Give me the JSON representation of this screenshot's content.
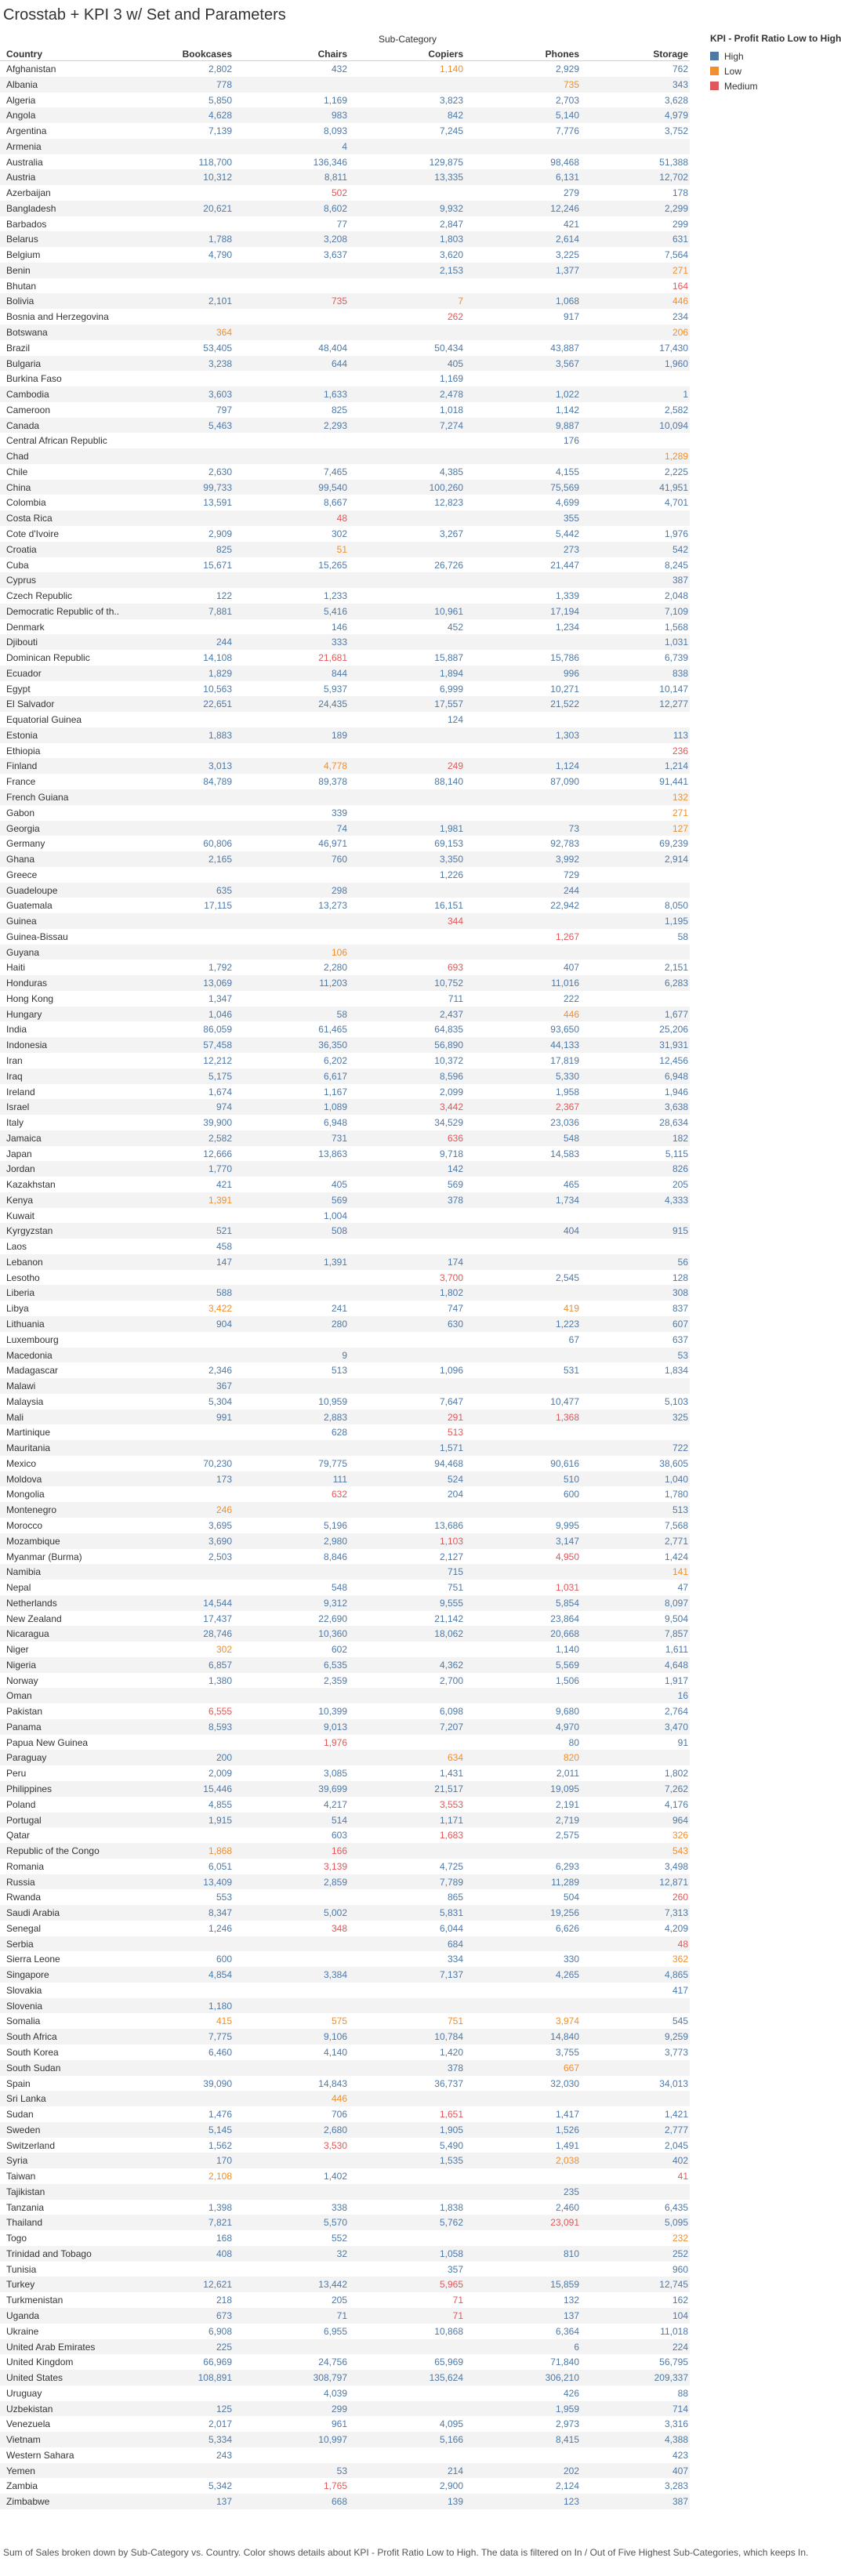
{
  "title": "Crosstab + KPI 3 w/ Set and Parameters",
  "sub_category_label": "Sub-Category",
  "headers": [
    "Country",
    "Bookcases",
    "Chairs",
    "Copiers",
    "Phones",
    "Storage"
  ],
  "legend": {
    "title": "KPI - Profit Ratio Low to High",
    "items": [
      {
        "label": "High",
        "color": "#4e79a7"
      },
      {
        "label": "Low",
        "color": "#f28e2b"
      },
      {
        "label": "Medium",
        "color": "#e15759"
      }
    ]
  },
  "colors": {
    "H": "#4e79a7",
    "L": "#f28e2b",
    "M": "#e15759"
  },
  "rows": [
    [
      "Afghanistan",
      "2,802|H",
      "432|H",
      "1,140|L",
      "2,929|H",
      "762|H"
    ],
    [
      "Albania",
      "778|H",
      "",
      "",
      "735|L",
      "343|H"
    ],
    [
      "Algeria",
      "5,850|H",
      "1,169|H",
      "3,823|H",
      "2,703|H",
      "3,628|H"
    ],
    [
      "Angola",
      "4,628|H",
      "983|H",
      "842|H",
      "5,140|H",
      "4,979|H"
    ],
    [
      "Argentina",
      "7,139|H",
      "8,093|H",
      "7,245|H",
      "7,776|H",
      "3,752|H"
    ],
    [
      "Armenia",
      "",
      "4|H",
      "",
      "",
      ""
    ],
    [
      "Australia",
      "118,700|H",
      "136,346|H",
      "129,875|H",
      "98,468|H",
      "51,388|H"
    ],
    [
      "Austria",
      "10,312|H",
      "8,811|H",
      "13,335|H",
      "6,131|H",
      "12,702|H"
    ],
    [
      "Azerbaijan",
      "",
      "502|M",
      "",
      "279|H",
      "178|H"
    ],
    [
      "Bangladesh",
      "20,621|H",
      "8,602|H",
      "9,932|H",
      "12,246|H",
      "2,299|H"
    ],
    [
      "Barbados",
      "",
      "77|H",
      "2,847|H",
      "421|H",
      "299|H"
    ],
    [
      "Belarus",
      "1,788|H",
      "3,208|H",
      "1,803|H",
      "2,614|H",
      "631|H"
    ],
    [
      "Belgium",
      "4,790|H",
      "3,637|H",
      "3,620|H",
      "3,225|H",
      "7,564|H"
    ],
    [
      "Benin",
      "",
      "",
      "2,153|H",
      "1,377|H",
      "271|L"
    ],
    [
      "Bhutan",
      "",
      "",
      "",
      "",
      "164|M"
    ],
    [
      "Bolivia",
      "2,101|H",
      "735|M",
      "7|L",
      "1,068|H",
      "446|L"
    ],
    [
      "Bosnia and Herzegovina",
      "",
      "",
      "262|M",
      "917|H",
      "234|H"
    ],
    [
      "Botswana",
      "364|L",
      "",
      "",
      "",
      "206|L"
    ],
    [
      "Brazil",
      "53,405|H",
      "48,404|H",
      "50,434|H",
      "43,887|H",
      "17,430|H"
    ],
    [
      "Bulgaria",
      "3,238|H",
      "644|H",
      "405|H",
      "3,567|H",
      "1,960|H"
    ],
    [
      "Burkina Faso",
      "",
      "",
      "1,169|H",
      "",
      ""
    ],
    [
      "Cambodia",
      "3,603|H",
      "1,633|H",
      "2,478|H",
      "1,022|H",
      "1|H"
    ],
    [
      "Cameroon",
      "797|H",
      "825|H",
      "1,018|H",
      "1,142|H",
      "2,582|H"
    ],
    [
      "Canada",
      "5,463|H",
      "2,293|H",
      "7,274|H",
      "9,887|H",
      "10,094|H"
    ],
    [
      "Central African Republic",
      "",
      "",
      "",
      "176|H",
      ""
    ],
    [
      "Chad",
      "",
      "",
      "",
      "",
      "1,289|L"
    ],
    [
      "Chile",
      "2,630|H",
      "7,465|H",
      "4,385|H",
      "4,155|H",
      "2,225|H"
    ],
    [
      "China",
      "99,733|H",
      "99,540|H",
      "100,260|H",
      "75,569|H",
      "41,951|H"
    ],
    [
      "Colombia",
      "13,591|H",
      "8,667|H",
      "12,823|H",
      "4,699|H",
      "4,701|H"
    ],
    [
      "Costa Rica",
      "",
      "48|M",
      "",
      "355|H",
      ""
    ],
    [
      "Cote d'Ivoire",
      "2,909|H",
      "302|H",
      "3,267|H",
      "5,442|H",
      "1,976|H"
    ],
    [
      "Croatia",
      "825|H",
      "51|L",
      "",
      "273|H",
      "542|H"
    ],
    [
      "Cuba",
      "15,671|H",
      "15,265|H",
      "26,726|H",
      "21,447|H",
      "8,245|H"
    ],
    [
      "Cyprus",
      "",
      "",
      "",
      "",
      "387|H"
    ],
    [
      "Czech Republic",
      "122|H",
      "1,233|H",
      "",
      "1,339|H",
      "2,048|H"
    ],
    [
      "Democratic Republic of th..",
      "7,881|H",
      "5,416|H",
      "10,961|H",
      "17,194|H",
      "7,109|H"
    ],
    [
      "Denmark",
      "",
      "146|H",
      "452|H",
      "1,234|H",
      "1,568|H"
    ],
    [
      "Djibouti",
      "244|H",
      "333|H",
      "",
      "",
      "1,031|H"
    ],
    [
      "Dominican Republic",
      "14,108|H",
      "21,681|M",
      "15,887|H",
      "15,786|H",
      "6,739|H"
    ],
    [
      "Ecuador",
      "1,829|H",
      "844|H",
      "1,894|H",
      "996|H",
      "838|H"
    ],
    [
      "Egypt",
      "10,563|H",
      "5,937|H",
      "6,999|H",
      "10,271|H",
      "10,147|H"
    ],
    [
      "El Salvador",
      "22,651|H",
      "24,435|H",
      "17,557|H",
      "21,522|H",
      "12,277|H"
    ],
    [
      "Equatorial Guinea",
      "",
      "",
      "124|H",
      "",
      ""
    ],
    [
      "Estonia",
      "1,883|H",
      "189|H",
      "",
      "1,303|H",
      "113|H"
    ],
    [
      "Ethiopia",
      "",
      "",
      "",
      "",
      "236|M"
    ],
    [
      "Finland",
      "3,013|H",
      "4,778|L",
      "249|M",
      "1,124|H",
      "1,214|H"
    ],
    [
      "France",
      "84,789|H",
      "89,378|H",
      "88,140|H",
      "87,090|H",
      "91,441|H"
    ],
    [
      "French Guiana",
      "",
      "",
      "",
      "",
      "132|L"
    ],
    [
      "Gabon",
      "",
      "339|H",
      "",
      "",
      "271|L"
    ],
    [
      "Georgia",
      "",
      "74|H",
      "1,981|H",
      "73|H",
      "127|L"
    ],
    [
      "Germany",
      "60,806|H",
      "46,971|H",
      "69,153|H",
      "92,783|H",
      "69,239|H"
    ],
    [
      "Ghana",
      "2,165|H",
      "760|H",
      "3,350|H",
      "3,992|H",
      "2,914|H"
    ],
    [
      "Greece",
      "",
      "",
      "1,226|H",
      "729|H",
      ""
    ],
    [
      "Guadeloupe",
      "635|H",
      "298|H",
      "",
      "244|H",
      ""
    ],
    [
      "Guatemala",
      "17,115|H",
      "13,273|H",
      "16,151|H",
      "22,942|H",
      "8,050|H"
    ],
    [
      "Guinea",
      "",
      "",
      "344|M",
      "",
      "1,195|H"
    ],
    [
      "Guinea-Bissau",
      "",
      "",
      "",
      "1,267|M",
      "58|H"
    ],
    [
      "Guyana",
      "",
      "106|L",
      "",
      "",
      ""
    ],
    [
      "Haiti",
      "1,792|H",
      "2,280|H",
      "693|M",
      "407|H",
      "2,151|H"
    ],
    [
      "Honduras",
      "13,069|H",
      "11,203|H",
      "10,752|H",
      "11,016|H",
      "6,283|H"
    ],
    [
      "Hong Kong",
      "1,347|H",
      "",
      "711|H",
      "222|H",
      ""
    ],
    [
      "Hungary",
      "1,046|H",
      "58|H",
      "2,437|H",
      "446|L",
      "1,677|H"
    ],
    [
      "India",
      "86,059|H",
      "61,465|H",
      "64,835|H",
      "93,650|H",
      "25,206|H"
    ],
    [
      "Indonesia",
      "57,458|H",
      "36,350|H",
      "56,890|H",
      "44,133|H",
      "31,931|H"
    ],
    [
      "Iran",
      "12,212|H",
      "6,202|H",
      "10,372|H",
      "17,819|H",
      "12,456|H"
    ],
    [
      "Iraq",
      "5,175|H",
      "6,617|H",
      "8,596|H",
      "5,330|H",
      "6,948|H"
    ],
    [
      "Ireland",
      "1,674|H",
      "1,167|H",
      "2,099|H",
      "1,958|H",
      "1,946|H"
    ],
    [
      "Israel",
      "974|H",
      "1,089|H",
      "3,442|M",
      "2,367|M",
      "3,638|H"
    ],
    [
      "Italy",
      "39,900|H",
      "6,948|H",
      "34,529|H",
      "23,036|H",
      "28,634|H"
    ],
    [
      "Jamaica",
      "2,582|H",
      "731|H",
      "636|M",
      "548|H",
      "182|H"
    ],
    [
      "Japan",
      "12,666|H",
      "13,863|H",
      "9,718|H",
      "14,583|H",
      "5,115|H"
    ],
    [
      "Jordan",
      "1,770|H",
      "",
      "142|H",
      "",
      "826|H"
    ],
    [
      "Kazakhstan",
      "421|H",
      "405|H",
      "569|H",
      "465|H",
      "205|H"
    ],
    [
      "Kenya",
      "1,391|L",
      "569|H",
      "378|H",
      "1,734|H",
      "4,333|H"
    ],
    [
      "Kuwait",
      "",
      "1,004|H",
      "",
      "",
      ""
    ],
    [
      "Kyrgyzstan",
      "521|H",
      "508|H",
      "",
      "404|H",
      "915|H"
    ],
    [
      "Laos",
      "458|H",
      "",
      "",
      "",
      ""
    ],
    [
      "Lebanon",
      "147|H",
      "1,391|H",
      "174|H",
      "",
      "56|H"
    ],
    [
      "Lesotho",
      "",
      "",
      "3,700|M",
      "2,545|H",
      "128|H"
    ],
    [
      "Liberia",
      "588|H",
      "",
      "1,802|H",
      "",
      "308|H"
    ],
    [
      "Libya",
      "3,422|L",
      "241|H",
      "747|H",
      "419|L",
      "837|H"
    ],
    [
      "Lithuania",
      "904|H",
      "280|H",
      "630|H",
      "1,223|H",
      "607|H"
    ],
    [
      "Luxembourg",
      "",
      "",
      "",
      "67|H",
      "637|H"
    ],
    [
      "Macedonia",
      "",
      "9|H",
      "",
      "",
      "53|H"
    ],
    [
      "Madagascar",
      "2,346|H",
      "513|H",
      "1,096|H",
      "531|H",
      "1,834|H"
    ],
    [
      "Malawi",
      "367|H",
      "",
      "",
      "",
      ""
    ],
    [
      "Malaysia",
      "5,304|H",
      "10,959|H",
      "7,647|H",
      "10,477|H",
      "5,103|H"
    ],
    [
      "Mali",
      "991|H",
      "2,883|H",
      "291|M",
      "1,368|M",
      "325|H"
    ],
    [
      "Martinique",
      "",
      "628|H",
      "513|M",
      "",
      ""
    ],
    [
      "Mauritania",
      "",
      "",
      "1,571|H",
      "",
      "722|H"
    ],
    [
      "Mexico",
      "70,230|H",
      "79,775|H",
      "94,468|H",
      "90,616|H",
      "38,605|H"
    ],
    [
      "Moldova",
      "173|H",
      "111|H",
      "524|H",
      "510|H",
      "1,040|H"
    ],
    [
      "Mongolia",
      "",
      "632|M",
      "204|H",
      "600|H",
      "1,780|H"
    ],
    [
      "Montenegro",
      "246|L",
      "",
      "",
      "",
      "513|H"
    ],
    [
      "Morocco",
      "3,695|H",
      "5,196|H",
      "13,686|H",
      "9,995|H",
      "7,568|H"
    ],
    [
      "Mozambique",
      "3,690|H",
      "2,980|H",
      "1,103|M",
      "3,147|H",
      "2,771|H"
    ],
    [
      "Myanmar (Burma)",
      "2,503|H",
      "8,846|H",
      "2,127|H",
      "4,950|M",
      "1,424|H"
    ],
    [
      "Namibia",
      "",
      "",
      "715|H",
      "",
      "141|L"
    ],
    [
      "Nepal",
      "",
      "548|H",
      "751|H",
      "1,031|M",
      "47|H"
    ],
    [
      "Netherlands",
      "14,544|H",
      "9,312|H",
      "9,555|H",
      "5,854|H",
      "8,097|H"
    ],
    [
      "New Zealand",
      "17,437|H",
      "22,690|H",
      "21,142|H",
      "23,864|H",
      "9,504|H"
    ],
    [
      "Nicaragua",
      "28,746|H",
      "10,360|H",
      "18,062|H",
      "20,668|H",
      "7,857|H"
    ],
    [
      "Niger",
      "302|L",
      "602|H",
      "",
      "1,140|H",
      "1,611|H"
    ],
    [
      "Nigeria",
      "6,857|H",
      "6,535|H",
      "4,362|H",
      "5,569|H",
      "4,648|H"
    ],
    [
      "Norway",
      "1,380|H",
      "2,359|H",
      "2,700|H",
      "1,506|H",
      "1,917|H"
    ],
    [
      "Oman",
      "",
      "",
      "",
      "",
      "16|H"
    ],
    [
      "Pakistan",
      "6,555|M",
      "10,399|H",
      "6,098|H",
      "9,680|H",
      "2,764|H"
    ],
    [
      "Panama",
      "8,593|H",
      "9,013|H",
      "7,207|H",
      "4,970|H",
      "3,470|H"
    ],
    [
      "Papua New Guinea",
      "",
      "1,976|M",
      "",
      "80|H",
      "91|H"
    ],
    [
      "Paraguay",
      "200|H",
      "",
      "634|L",
      "820|L",
      ""
    ],
    [
      "Peru",
      "2,009|H",
      "3,085|H",
      "1,431|H",
      "2,011|H",
      "1,802|H"
    ],
    [
      "Philippines",
      "15,446|H",
      "39,699|H",
      "21,517|H",
      "19,095|H",
      "7,262|H"
    ],
    [
      "Poland",
      "4,855|H",
      "4,217|H",
      "3,553|M",
      "2,191|H",
      "4,176|H"
    ],
    [
      "Portugal",
      "1,915|H",
      "514|H",
      "1,171|H",
      "2,719|H",
      "964|H"
    ],
    [
      "Qatar",
      "",
      "603|H",
      "1,683|M",
      "2,575|H",
      "326|L"
    ],
    [
      "Republic of the Congo",
      "1,868|L",
      "166|M",
      "",
      "",
      "543|L"
    ],
    [
      "Romania",
      "6,051|H",
      "3,139|M",
      "4,725|H",
      "6,293|H",
      "3,498|H"
    ],
    [
      "Russia",
      "13,409|H",
      "2,859|H",
      "7,789|H",
      "11,289|H",
      "12,871|H"
    ],
    [
      "Rwanda",
      "553|H",
      "",
      "865|H",
      "504|H",
      "260|M"
    ],
    [
      "Saudi Arabia",
      "8,347|H",
      "5,002|H",
      "5,831|H",
      "19,256|H",
      "7,313|H"
    ],
    [
      "Senegal",
      "1,246|H",
      "348|M",
      "6,044|H",
      "6,626|H",
      "4,209|H"
    ],
    [
      "Serbia",
      "",
      "",
      "684|H",
      "",
      "48|M"
    ],
    [
      "Sierra Leone",
      "600|H",
      "",
      "334|H",
      "330|H",
      "362|L"
    ],
    [
      "Singapore",
      "4,854|H",
      "3,384|H",
      "7,137|H",
      "4,265|H",
      "4,865|H"
    ],
    [
      "Slovakia",
      "",
      "",
      "",
      "",
      "417|H"
    ],
    [
      "Slovenia",
      "1,180|H",
      "",
      "",
      "",
      ""
    ],
    [
      "Somalia",
      "415|L",
      "575|L",
      "751|L",
      "3,974|L",
      "545|H"
    ],
    [
      "South Africa",
      "7,775|H",
      "9,106|H",
      "10,784|H",
      "14,840|H",
      "9,259|H"
    ],
    [
      "South Korea",
      "6,460|H",
      "4,140|H",
      "1,420|H",
      "3,755|H",
      "3,773|H"
    ],
    [
      "South Sudan",
      "",
      "",
      "378|H",
      "667|L",
      ""
    ],
    [
      "Spain",
      "39,090|H",
      "14,843|H",
      "36,737|H",
      "32,030|H",
      "34,013|H"
    ],
    [
      "Sri Lanka",
      "",
      "446|L",
      "",
      "",
      ""
    ],
    [
      "Sudan",
      "1,476|H",
      "706|H",
      "1,651|M",
      "1,417|H",
      "1,421|H"
    ],
    [
      "Sweden",
      "5,145|H",
      "2,680|H",
      "1,905|H",
      "1,526|H",
      "2,777|H"
    ],
    [
      "Switzerland",
      "1,562|H",
      "3,530|M",
      "5,490|H",
      "1,491|H",
      "2,045|H"
    ],
    [
      "Syria",
      "170|H",
      "",
      "1,535|H",
      "2,038|L",
      "402|H"
    ],
    [
      "Taiwan",
      "2,108|L",
      "1,402|H",
      "",
      "",
      "41|M"
    ],
    [
      "Tajikistan",
      "",
      "",
      "",
      "235|H",
      ""
    ],
    [
      "Tanzania",
      "1,398|H",
      "338|H",
      "1,838|H",
      "2,460|H",
      "6,435|H"
    ],
    [
      "Thailand",
      "7,821|H",
      "5,570|H",
      "5,762|H",
      "23,091|M",
      "5,095|H"
    ],
    [
      "Togo",
      "168|H",
      "552|H",
      "",
      "",
      "232|L"
    ],
    [
      "Trinidad and Tobago",
      "408|H",
      "32|H",
      "1,058|H",
      "810|H",
      "252|H"
    ],
    [
      "Tunisia",
      "",
      "",
      "357|H",
      "",
      "960|H"
    ],
    [
      "Turkey",
      "12,621|H",
      "13,442|H",
      "5,965|M",
      "15,859|H",
      "12,745|H"
    ],
    [
      "Turkmenistan",
      "218|H",
      "205|H",
      "71|M",
      "132|H",
      "162|H"
    ],
    [
      "Uganda",
      "673|H",
      "71|H",
      "71|M",
      "137|H",
      "104|H"
    ],
    [
      "Ukraine",
      "6,908|H",
      "6,955|H",
      "10,868|H",
      "6,364|H",
      "11,018|H"
    ],
    [
      "United Arab Emirates",
      "225|H",
      "",
      "",
      "6|H",
      "224|H"
    ],
    [
      "United Kingdom",
      "66,969|H",
      "24,756|H",
      "65,969|H",
      "71,840|H",
      "56,795|H"
    ],
    [
      "United States",
      "108,891|H",
      "308,797|H",
      "135,624|H",
      "306,210|H",
      "209,337|H"
    ],
    [
      "Uruguay",
      "",
      "4,039|H",
      "",
      "426|H",
      "88|H"
    ],
    [
      "Uzbekistan",
      "125|H",
      "299|H",
      "",
      "1,959|H",
      "714|H"
    ],
    [
      "Venezuela",
      "2,017|H",
      "961|H",
      "4,095|H",
      "2,973|H",
      "3,316|H"
    ],
    [
      "Vietnam",
      "5,334|H",
      "10,997|H",
      "5,166|H",
      "8,415|H",
      "4,388|H"
    ],
    [
      "Western Sahara",
      "243|H",
      "",
      "",
      "",
      "423|H"
    ],
    [
      "Yemen",
      "",
      "53|H",
      "214|H",
      "202|H",
      "407|H"
    ],
    [
      "Zambia",
      "5,342|H",
      "1,765|M",
      "2,900|H",
      "2,124|H",
      "3,283|H"
    ],
    [
      "Zimbabwe",
      "137|H",
      "668|H",
      "139|H",
      "123|H",
      "387|H"
    ]
  ],
  "footer": "Sum of Sales broken down by Sub-Category vs. Country.  Color shows details about KPI - Profit Ratio Low to High. The data is filtered on In / Out of Five Highest Sub-Categories, which keeps In."
}
